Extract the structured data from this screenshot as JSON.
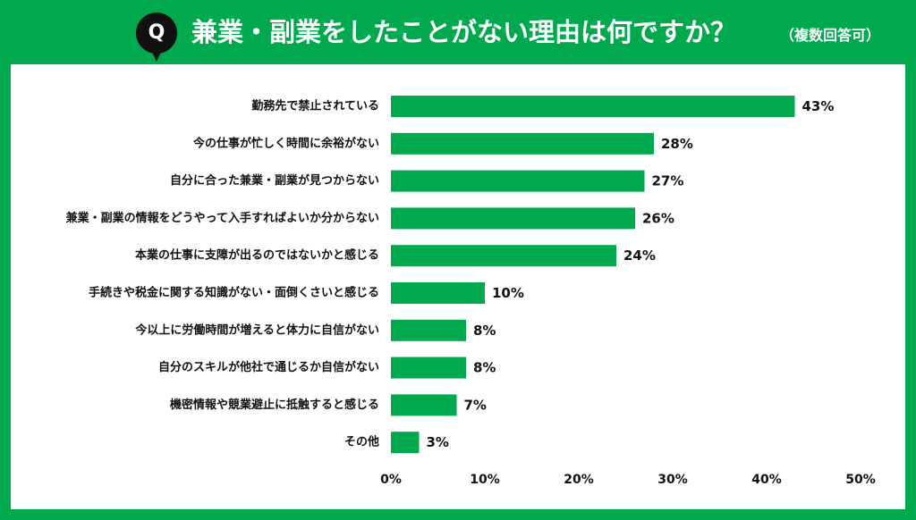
{
  "header": {
    "badge": "Q",
    "title": "兼業・副業をしたことがない理由は何ですか？",
    "note": "（複数回答可）"
  },
  "colors": {
    "background": "#00A84E",
    "bar": "#00A84E",
    "badge": "#111111",
    "text": "#111111"
  },
  "chart_data": {
    "type": "bar",
    "orientation": "horizontal",
    "categories": [
      "勤務先で禁止されている",
      "今の仕事が忙しく時間に余裕がない",
      "自分に合った兼業・副業が見つからない",
      "兼業・副業の情報をどうやって入手すればよいか分からない",
      "本業の仕事に支障が出るのではないかと感じる",
      "手続きや税金に関する知識がない・面倒くさいと感じる",
      "今以上に労働時間が増えると体力に自信がない",
      "自分のスキルが他社で通じるか自信がない",
      "機密情報や競業避止に抵触すると感じる",
      "その他"
    ],
    "values": [
      43,
      28,
      27,
      26,
      24,
      10,
      8,
      8,
      7,
      3
    ],
    "value_labels": [
      "43%",
      "28%",
      "27%",
      "26%",
      "24%",
      "10%",
      "8%",
      "8%",
      "7%",
      "3%"
    ],
    "xlim": [
      0,
      50
    ],
    "xticks": [
      0,
      10,
      20,
      30,
      40,
      50
    ],
    "xtick_labels": [
      "0%",
      "10%",
      "20%",
      "30%",
      "40%",
      "50%"
    ],
    "grid": false,
    "legend": "none"
  }
}
